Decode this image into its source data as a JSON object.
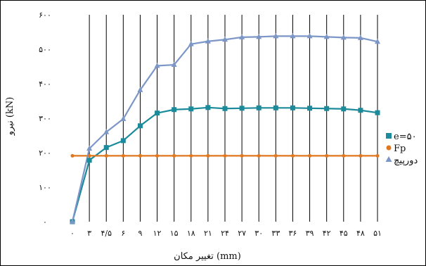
{
  "chart_data": {
    "type": "line",
    "title": "",
    "xlabel": "تغییر مکان (mm)",
    "ylabel": "نیرو (kN)",
    "ylim": [
      0,
      600
    ],
    "yticks": [
      "۰",
      "۱۰۰",
      "۲۰۰",
      "۳۰۰",
      "۴۰۰",
      "۵۰۰",
      "۶۰۰"
    ],
    "grid": "vertical",
    "legend_position": "right",
    "categories": [
      "۰",
      "۳",
      "۴/۵",
      "۶",
      "۹",
      "۱۲",
      "۱۵",
      "۱۸",
      "۲۱",
      "۲۴",
      "۲۷",
      "۳۰",
      "۳۳",
      "۳۶",
      "۳۹",
      "۴۲",
      "۴۵",
      "۴۸",
      "۵۱"
    ],
    "series": [
      {
        "name": "e=۵۰",
        "color": "#1b8a9a",
        "marker": "square",
        "values": [
          0,
          178,
          215,
          235,
          278,
          315,
          325,
          327,
          331,
          328,
          329,
          330,
          330,
          330,
          329,
          328,
          327,
          323,
          316
        ]
      },
      {
        "name": "Fp",
        "color": "#e0761d",
        "marker": "circle",
        "values": [
          191,
          191,
          191,
          191,
          191,
          191,
          191,
          191,
          191,
          191,
          191,
          191,
          191,
          191,
          191,
          191,
          191,
          191,
          191
        ]
      },
      {
        "name": "دورپیچ",
        "color": "#7b96c7",
        "marker": "triangle",
        "values": [
          0,
          212,
          260,
          298,
          382,
          452,
          455,
          515,
          523,
          528,
          535,
          536,
          538,
          538,
          538,
          536,
          534,
          533,
          522
        ]
      }
    ]
  }
}
